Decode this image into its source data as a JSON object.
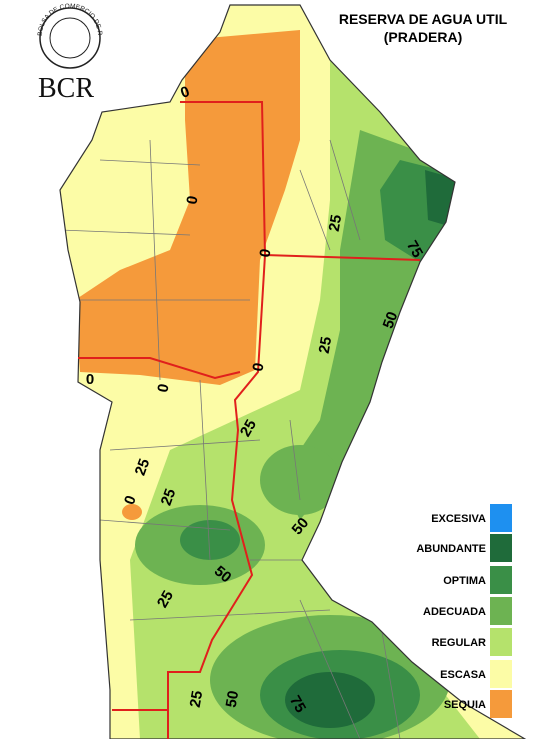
{
  "title": [
    "RESERVA DE AGUA UTIL",
    "(PRADERA)"
  ],
  "logo": {
    "acronym": "BCR",
    "seal_text": "BOLSA DE COMERCIO DE ROSARIO"
  },
  "legend": [
    {
      "label": "EXCESIVA",
      "color": "#1e90f0"
    },
    {
      "label": "ABUNDANTE",
      "color": "#1f6b3a"
    },
    {
      "label": "OPTIMA",
      "color": "#3a8f47"
    },
    {
      "label": "ADECUADA",
      "color": "#6db352"
    },
    {
      "label": "REGULAR",
      "color": "#b5e26c"
    },
    {
      "label": "ESCASA",
      "color": "#fcfca6"
    },
    {
      "label": "SEQUIA",
      "color": "#f59a3b"
    }
  ],
  "contour_labels": [
    0,
    0,
    0,
    0,
    0,
    0,
    0,
    25,
    75,
    50,
    25,
    25,
    25,
    25,
    50,
    50,
    25,
    25,
    50,
    75
  ]
}
